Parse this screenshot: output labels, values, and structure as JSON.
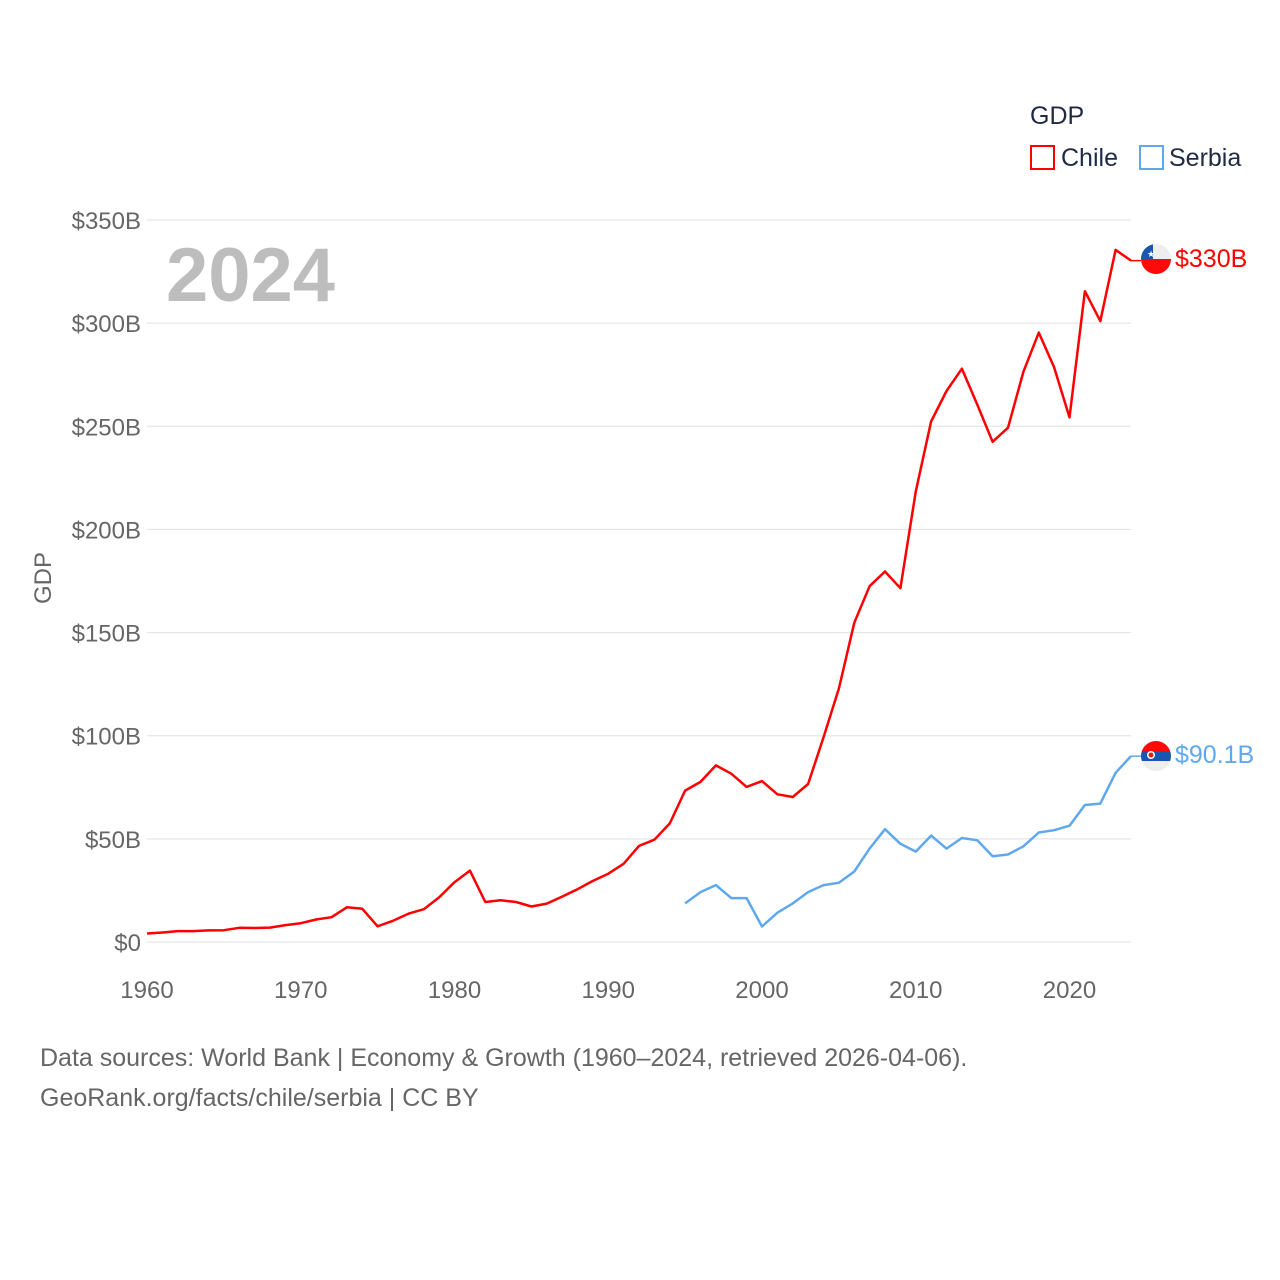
{
  "chart_data": {
    "type": "line",
    "title": "",
    "year_watermark": "2024",
    "xlabel": "",
    "ylabel": "GDP",
    "xlim": [
      1960,
      2024
    ],
    "ylim": [
      0,
      350
    ],
    "x_ticks": [
      "1960",
      "1970",
      "1980",
      "1990",
      "2000",
      "2010",
      "2020"
    ],
    "y_ticks": [
      "$0",
      "$50B",
      "$100B",
      "$150B",
      "$200B",
      "$250B",
      "$300B",
      "$350B"
    ],
    "grid": true,
    "legend": {
      "title": "GDP",
      "placement": "top-right",
      "entries": [
        "Chile",
        "Serbia"
      ]
    },
    "series": [
      {
        "name": "Chile",
        "color": "#ff0000",
        "end_label": "$330B",
        "start_year": 1960,
        "values_billion_usd": [
          4.1,
          4.6,
          5.3,
          5.3,
          5.6,
          5.7,
          6.9,
          6.8,
          7.0,
          8.2,
          9.1,
          10.9,
          12.0,
          16.8,
          16.1,
          7.6,
          10.3,
          13.7,
          15.9,
          21.6,
          29.0,
          34.6,
          19.4,
          20.2,
          19.4,
          17.2,
          18.6,
          22.0,
          25.6,
          29.6,
          33.1,
          37.9,
          46.6,
          49.6,
          57.5,
          73.4,
          77.6,
          85.6,
          81.6,
          75.2,
          78.0,
          71.6,
          70.3,
          76.6,
          99.2,
          122.9,
          154.8,
          172.5,
          179.6,
          171.5,
          218.5,
          252.3,
          267.1,
          277.9,
          260.5,
          242.5,
          249.3,
          276.4,
          295.4,
          278.6,
          254.3,
          315.5,
          301.0,
          335.5,
          330.3
        ]
      },
      {
        "name": "Serbia",
        "color": "#5fa8ee",
        "end_label": "$90.1B",
        "start_year": 1995,
        "values_billion_usd": [
          18.7,
          24.2,
          27.6,
          21.3,
          21.3,
          7.5,
          14.2,
          18.7,
          24.2,
          27.6,
          28.7,
          34.2,
          45.3,
          54.7,
          47.6,
          43.8,
          51.6,
          45.3,
          50.4,
          49.3,
          41.6,
          42.4,
          46.4,
          53.1,
          54.2,
          56.4,
          66.4,
          67.1,
          82.0,
          90.1
        ]
      }
    ]
  },
  "footer": {
    "line1": "Data sources: World Bank | Economy & Growth (1960–2024, retrieved 2026-04-06).",
    "line2": "GeoRank.org/facts/chile/serbia | CC BY"
  }
}
